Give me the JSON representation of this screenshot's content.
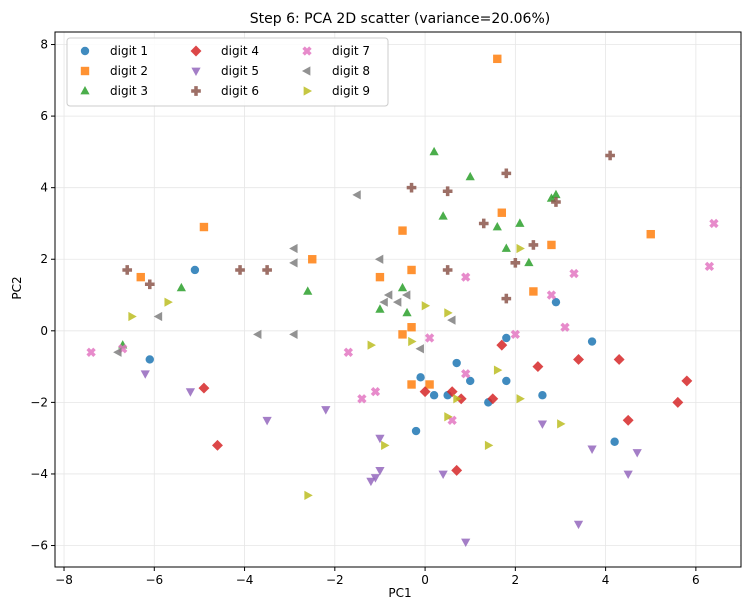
{
  "chart_data": {
    "type": "scatter",
    "title": "Step 6: PCA 2D scatter  (variance=20.06%)",
    "xlabel": "PC1",
    "ylabel": "PC2",
    "xlim": [
      -8.2,
      7.0
    ],
    "ylim": [
      -6.6,
      8.35
    ],
    "xticks": [
      -8,
      -6,
      -4,
      -2,
      0,
      2,
      4,
      6
    ],
    "yticks": [
      -6,
      -4,
      -2,
      0,
      2,
      4,
      6,
      8
    ],
    "grid": true,
    "legend_position": "top-left",
    "series": [
      {
        "name": "digit 1",
        "marker": "circle",
        "color": "#1f77b4",
        "points": [
          [
            -6.1,
            -0.8
          ],
          [
            -5.1,
            1.7
          ],
          [
            -0.2,
            -2.8
          ],
          [
            -0.1,
            -1.3
          ],
          [
            0.2,
            -1.8
          ],
          [
            0.5,
            -1.8
          ],
          [
            0.7,
            -0.9
          ],
          [
            1.0,
            -1.4
          ],
          [
            1.4,
            -2.0
          ],
          [
            1.8,
            -0.2
          ],
          [
            1.8,
            -1.4
          ],
          [
            2.6,
            -1.8
          ],
          [
            2.9,
            0.8
          ],
          [
            3.7,
            -0.3
          ],
          [
            4.2,
            -3.1
          ]
        ]
      },
      {
        "name": "digit 2",
        "marker": "square",
        "color": "#ff7f0e",
        "points": [
          [
            -6.3,
            1.5
          ],
          [
            -4.9,
            2.9
          ],
          [
            -2.5,
            2.0
          ],
          [
            -1.0,
            1.5
          ],
          [
            -0.5,
            2.8
          ],
          [
            -0.3,
            1.7
          ],
          [
            -0.5,
            -0.1
          ],
          [
            -0.3,
            0.1
          ],
          [
            -0.3,
            -1.5
          ],
          [
            0.1,
            -1.5
          ],
          [
            1.6,
            7.6
          ],
          [
            1.7,
            3.3
          ],
          [
            2.4,
            1.1
          ],
          [
            2.8,
            2.4
          ],
          [
            5.0,
            2.7
          ]
        ]
      },
      {
        "name": "digit 3",
        "marker": "triangle-up",
        "color": "#2ca02c",
        "points": [
          [
            -6.7,
            -0.4
          ],
          [
            -5.4,
            1.2
          ],
          [
            -2.6,
            1.1
          ],
          [
            -1.0,
            0.6
          ],
          [
            -0.5,
            1.2
          ],
          [
            -0.4,
            0.5
          ],
          [
            0.2,
            5.0
          ],
          [
            0.4,
            3.2
          ],
          [
            1.0,
            4.3
          ],
          [
            1.6,
            2.9
          ],
          [
            1.8,
            2.3
          ],
          [
            2.1,
            3.0
          ],
          [
            2.3,
            1.9
          ],
          [
            2.8,
            3.7
          ],
          [
            2.9,
            3.8
          ]
        ]
      },
      {
        "name": "digit 4",
        "marker": "diamond",
        "color": "#d62728",
        "points": [
          [
            -4.9,
            -1.6
          ],
          [
            -4.6,
            -3.2
          ],
          [
            0.0,
            -1.7
          ],
          [
            0.6,
            -1.7
          ],
          [
            0.7,
            -3.9
          ],
          [
            0.8,
            -1.9
          ],
          [
            1.5,
            -1.9
          ],
          [
            1.7,
            -0.4
          ],
          [
            2.5,
            -1.0
          ],
          [
            3.4,
            -0.8
          ],
          [
            4.3,
            -0.8
          ],
          [
            4.5,
            -2.5
          ],
          [
            5.6,
            -2.0
          ],
          [
            5.8,
            -1.4
          ]
        ]
      },
      {
        "name": "digit 5",
        "marker": "triangle-down",
        "color": "#9467bd",
        "points": [
          [
            -6.2,
            -1.2
          ],
          [
            -5.2,
            -1.7
          ],
          [
            -3.5,
            -2.5
          ],
          [
            -2.2,
            -2.2
          ],
          [
            -1.2,
            -4.2
          ],
          [
            -1.1,
            -4.1
          ],
          [
            -1.0,
            -3.0
          ],
          [
            -1.0,
            -3.9
          ],
          [
            0.4,
            -4.0
          ],
          [
            0.9,
            -5.9
          ],
          [
            2.6,
            -2.6
          ],
          [
            3.7,
            -3.3
          ],
          [
            3.4,
            -5.4
          ],
          [
            4.5,
            -4.0
          ],
          [
            4.7,
            -3.4
          ]
        ]
      },
      {
        "name": "digit 6",
        "marker": "plus",
        "color": "#8c564b",
        "points": [
          [
            -6.6,
            1.7
          ],
          [
            -6.1,
            1.3
          ],
          [
            -4.1,
            1.7
          ],
          [
            -3.5,
            1.7
          ],
          [
            -0.3,
            4.0
          ],
          [
            0.5,
            3.9
          ],
          [
            0.5,
            1.7
          ],
          [
            1.3,
            3.0
          ],
          [
            1.8,
            4.4
          ],
          [
            1.8,
            0.9
          ],
          [
            2.0,
            1.9
          ],
          [
            2.4,
            2.4
          ],
          [
            2.9,
            3.6
          ],
          [
            4.1,
            4.9
          ]
        ]
      },
      {
        "name": "digit 7",
        "marker": "x-filled",
        "color": "#e377c2",
        "points": [
          [
            -7.4,
            -0.6
          ],
          [
            -6.7,
            -0.5
          ],
          [
            -1.7,
            -0.6
          ],
          [
            -1.4,
            -1.9
          ],
          [
            -1.1,
            -1.7
          ],
          [
            0.1,
            -0.2
          ],
          [
            0.6,
            -2.5
          ],
          [
            0.9,
            1.5
          ],
          [
            0.9,
            -1.2
          ],
          [
            2.0,
            -0.1
          ],
          [
            2.8,
            1.0
          ],
          [
            3.1,
            0.1
          ],
          [
            3.3,
            1.6
          ],
          [
            6.3,
            1.8
          ],
          [
            6.4,
            3.0
          ]
        ]
      },
      {
        "name": "digit 8",
        "marker": "triangle-left",
        "color": "#7f7f7f",
        "points": [
          [
            -6.8,
            -0.6
          ],
          [
            -5.9,
            0.4
          ],
          [
            -3.7,
            -0.1
          ],
          [
            -2.9,
            2.3
          ],
          [
            -2.9,
            1.9
          ],
          [
            -2.9,
            -0.1
          ],
          [
            -1.5,
            3.8
          ],
          [
            -1.0,
            2.0
          ],
          [
            -0.9,
            0.8
          ],
          [
            -0.8,
            1.0
          ],
          [
            -0.6,
            0.8
          ],
          [
            -0.4,
            1.0
          ],
          [
            -0.1,
            -0.5
          ],
          [
            0.6,
            0.3
          ]
        ]
      },
      {
        "name": "digit 9",
        "marker": "triangle-right",
        "color": "#bcbd22",
        "points": [
          [
            -6.5,
            0.4
          ],
          [
            -5.7,
            0.8
          ],
          [
            -2.6,
            -4.6
          ],
          [
            -1.2,
            -0.4
          ],
          [
            -0.9,
            -3.2
          ],
          [
            -0.3,
            -0.3
          ],
          [
            0.0,
            0.7
          ],
          [
            0.5,
            0.5
          ],
          [
            0.5,
            -2.4
          ],
          [
            0.7,
            -1.9
          ],
          [
            1.4,
            -3.2
          ],
          [
            1.6,
            -1.1
          ],
          [
            2.1,
            2.3
          ],
          [
            2.1,
            -1.9
          ],
          [
            3.0,
            -2.6
          ]
        ]
      }
    ]
  }
}
